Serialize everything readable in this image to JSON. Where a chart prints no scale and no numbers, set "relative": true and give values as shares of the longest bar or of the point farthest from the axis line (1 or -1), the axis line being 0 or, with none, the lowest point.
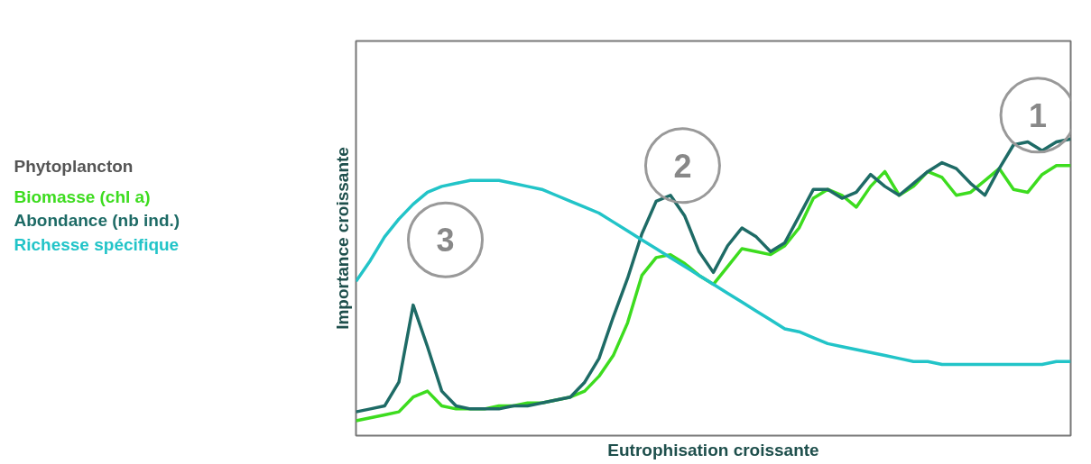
{
  "chart_data": {
    "type": "line",
    "relative": true,
    "xlabel": "Eutrophisation croissante",
    "ylabel": "Importance croissante",
    "legend_title": "Phytoplancton",
    "legend": "left",
    "tick_labels": false,
    "categories": [
      null,
      null,
      null,
      null,
      null,
      null,
      null,
      null,
      null,
      null,
      null,
      null,
      null,
      null,
      null,
      null,
      null,
      null,
      null,
      null,
      null,
      null,
      null,
      null,
      null,
      null,
      null,
      null,
      null,
      null,
      null,
      null,
      null,
      null,
      null,
      null,
      null,
      null,
      null,
      null,
      null,
      null,
      null,
      null,
      null,
      null,
      null,
      null,
      null,
      null,
      null
    ],
    "series": [
      {
        "name": "Biomasse (chl a)",
        "color": "#3ddc1f",
        "values": [
          0.05,
          0.06,
          0.07,
          0.08,
          0.13,
          0.15,
          0.1,
          0.09,
          0.09,
          0.09,
          0.1,
          0.1,
          0.11,
          0.11,
          0.12,
          0.13,
          0.15,
          0.2,
          0.27,
          0.38,
          0.54,
          0.6,
          0.61,
          0.58,
          0.54,
          0.51,
          0.57,
          0.63,
          0.62,
          0.61,
          0.64,
          0.7,
          0.8,
          0.83,
          0.81,
          0.77,
          0.84,
          0.89,
          0.81,
          0.84,
          0.89,
          0.87,
          0.81,
          0.82,
          0.86,
          0.9,
          0.83,
          0.82,
          0.88,
          0.91,
          0.91
        ]
      },
      {
        "name": "Abondance (nb ind.)",
        "color": "#1e6b66",
        "values": [
          0.08,
          0.09,
          0.1,
          0.18,
          0.44,
          0.3,
          0.15,
          0.1,
          0.09,
          0.09,
          0.09,
          0.1,
          0.1,
          0.11,
          0.12,
          0.13,
          0.18,
          0.26,
          0.4,
          0.53,
          0.68,
          0.79,
          0.81,
          0.74,
          0.62,
          0.55,
          0.64,
          0.7,
          0.67,
          0.62,
          0.65,
          0.74,
          0.83,
          0.83,
          0.8,
          0.82,
          0.88,
          0.84,
          0.81,
          0.85,
          0.89,
          0.92,
          0.9,
          0.85,
          0.81,
          0.9,
          0.98,
          0.99,
          0.96,
          0.99,
          1.0
        ]
      },
      {
        "name": "Richesse spécifique",
        "color": "#22c4c8",
        "values": [
          0.52,
          0.59,
          0.67,
          0.73,
          0.78,
          0.82,
          0.84,
          0.85,
          0.86,
          0.86,
          0.86,
          0.85,
          0.84,
          0.83,
          0.81,
          0.79,
          0.77,
          0.75,
          0.72,
          0.69,
          0.66,
          0.63,
          0.6,
          0.57,
          0.54,
          0.51,
          0.48,
          0.45,
          0.42,
          0.39,
          0.36,
          0.35,
          0.33,
          0.31,
          0.3,
          0.29,
          0.28,
          0.27,
          0.26,
          0.25,
          0.25,
          0.24,
          0.24,
          0.24,
          0.24,
          0.24,
          0.24,
          0.24,
          0.24,
          0.25,
          0.25
        ]
      }
    ],
    "annotations": [
      "1",
      "2",
      "3"
    ]
  }
}
